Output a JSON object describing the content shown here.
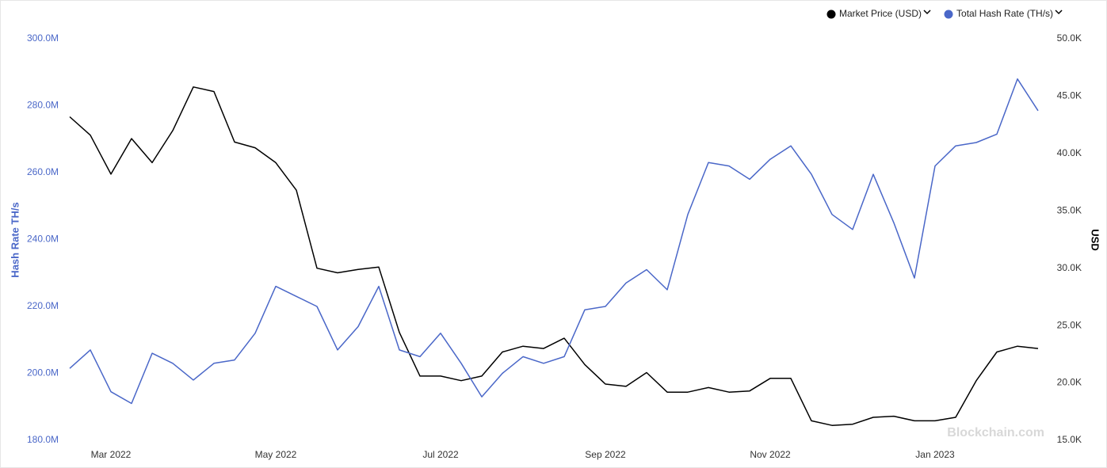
{
  "chart_data": {
    "type": "line",
    "y_label": "Hash Rate TH/s",
    "y2_label": "USD",
    "watermark": "Blockchain.com",
    "categories": [
      null,
      null,
      "Mar 2022",
      null,
      null,
      null,
      null,
      null,
      null,
      null,
      "May 2022",
      null,
      null,
      null,
      null,
      null,
      null,
      null,
      "Jul 2022",
      null,
      null,
      null,
      null,
      null,
      null,
      null,
      "Sep 2022",
      null,
      null,
      null,
      null,
      null,
      null,
      null,
      "Nov 2022",
      null,
      null,
      null,
      null,
      null,
      null,
      null,
      "Jan 2023",
      null,
      null,
      null,
      null,
      null
    ],
    "series": [
      {
        "name": "Market Price (USD)",
        "color": "#000000",
        "axis": "y2",
        "values": [
          43200,
          41600,
          38200,
          41300,
          39200,
          42000,
          45800,
          45400,
          41000,
          40500,
          39200,
          36800,
          30000,
          29600,
          29900,
          30100,
          24400,
          20600,
          20600,
          20200,
          20600,
          22700,
          23200,
          23000,
          23900,
          21600,
          19900,
          19700,
          20900,
          19200,
          19200,
          19600,
          19200,
          19300,
          20400,
          20400,
          16700,
          16300,
          16400,
          17000,
          17100,
          16700,
          16700,
          17000,
          20200,
          22700,
          23200,
          23000
        ]
      },
      {
        "name": "Total Hash Rate (TH/s)",
        "color": "#4a67c8",
        "values": [
          201500000,
          207000000,
          194500000,
          191000000,
          206000000,
          203000000,
          198000000,
          203000000,
          204000000,
          212000000,
          226000000,
          223000000,
          220000000,
          207000000,
          214000000,
          226000000,
          207000000,
          205000000,
          212000000,
          203000000,
          193000000,
          200000000,
          205000000,
          203000000,
          205000000,
          219000000,
          220000000,
          227000000,
          231000000,
          225000000,
          247500000,
          263000000,
          262000000,
          258000000,
          264000000,
          268000000,
          259500000,
          247500000,
          243000000,
          259500000,
          245000000,
          228500000,
          262000000,
          268000000,
          269000000,
          271500000,
          288000000,
          278500000
        ]
      }
    ],
    "ylim": [
      180000000,
      300000000
    ],
    "yticks": [
      {
        "value": 180000000,
        "label": "180.0M"
      },
      {
        "value": 200000000,
        "label": "200.0M"
      },
      {
        "value": 220000000,
        "label": "220.0M"
      },
      {
        "value": 240000000,
        "label": "240.0M"
      },
      {
        "value": 260000000,
        "label": "260.0M"
      },
      {
        "value": 280000000,
        "label": "280.0M"
      },
      {
        "value": 300000000,
        "label": "300.0M"
      }
    ],
    "y2lim": [
      15000,
      50000
    ],
    "y2ticks": [
      {
        "value": 15000,
        "label": "15.0K"
      },
      {
        "value": 20000,
        "label": "20.0K"
      },
      {
        "value": 25000,
        "label": "25.0K"
      },
      {
        "value": 30000,
        "label": "30.0K"
      },
      {
        "value": 35000,
        "label": "35.0K"
      },
      {
        "value": 40000,
        "label": "40.0K"
      },
      {
        "value": 45000,
        "label": "45.0K"
      },
      {
        "value": 50000,
        "label": "50.0K"
      }
    ],
    "legend": "top-right",
    "grid": false
  }
}
